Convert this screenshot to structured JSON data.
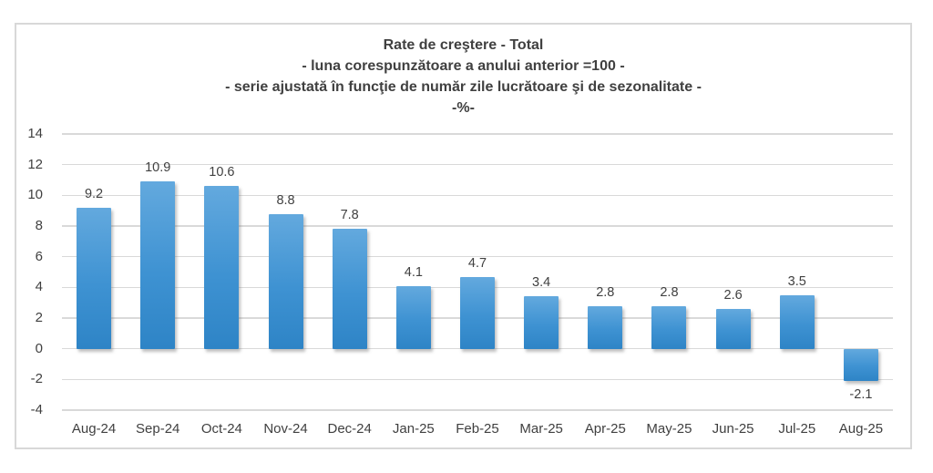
{
  "chart_data": {
    "type": "bar",
    "title": "Rate de creştere - Total",
    "title_lines": [
      "Rate de creştere - Total",
      "- luna corespunzătoare a anului anterior =100 -",
      "- serie ajustată în funcţie de număr zile lucrătoare şi de sezonalitate -",
      "-%-"
    ],
    "categories": [
      "Aug-24",
      "Sep-24",
      "Oct-24",
      "Nov-24",
      "Dec-24",
      "Jan-25",
      "Feb-25",
      "Mar-25",
      "Apr-25",
      "May-25",
      "Jun-25",
      "Jul-25",
      "Aug-25"
    ],
    "values": [
      9.2,
      10.9,
      10.6,
      8.8,
      7.8,
      4.1,
      4.7,
      3.4,
      2.8,
      2.8,
      2.6,
      3.5,
      -2.1
    ],
    "ylim": [
      -4,
      14
    ],
    "ytick_step": 2,
    "yticks": [
      14,
      12,
      10,
      8,
      6,
      4,
      2,
      0,
      -2,
      -4
    ],
    "grid": true,
    "legend_position": "none",
    "xlabel": "",
    "ylabel": "",
    "colors": {
      "bar_top": "#63A9DE",
      "bar_bottom": "#2E84C6",
      "gridline": "#D9D9D9",
      "frame_border": "#D8D8D8",
      "text": "#404040",
      "background": "#FFFFFF"
    }
  }
}
